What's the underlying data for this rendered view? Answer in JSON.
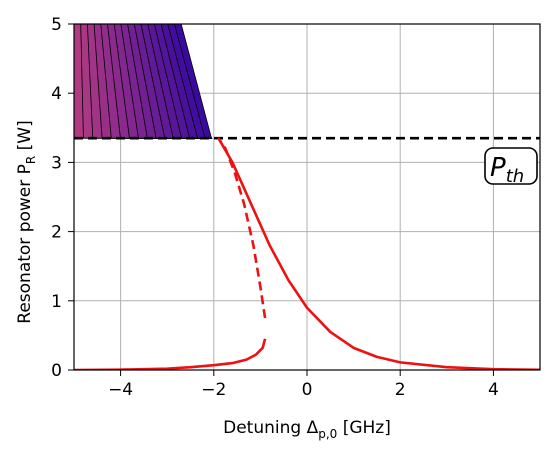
{
  "chart_data": {
    "type": "line",
    "xlabel_main": "Detuning Δ",
    "xlabel_sub": "p,0",
    "xlabel_unit": " [GHz]",
    "ylabel_main": "Resonator power P",
    "ylabel_sub": "R",
    "ylabel_unit": " [W]",
    "xlim": [
      -5,
      5
    ],
    "ylim": [
      0,
      5
    ],
    "xticks": [
      -4,
      -2,
      0,
      2,
      4
    ],
    "xtick_labels": [
      "−4",
      "−2",
      "0",
      "2",
      "4"
    ],
    "yticks": [
      0,
      1,
      2,
      3,
      4,
      5
    ],
    "ytick_labels": [
      "0",
      "1",
      "2",
      "3",
      "4",
      "5"
    ],
    "grid": true,
    "threshold": {
      "value": 3.35,
      "label_main": "P",
      "label_sub": "th",
      "color": "#000000",
      "style": "dashed"
    },
    "series": [
      {
        "style": "solid",
        "color": "#ee1111",
        "points": [
          [
            -5,
            0.0
          ],
          [
            -4,
            0.005
          ],
          [
            -3,
            0.02
          ],
          [
            -2.5,
            0.04
          ],
          [
            -2,
            0.07
          ],
          [
            -1.6,
            0.1
          ],
          [
            -1.3,
            0.15
          ],
          [
            -1.1,
            0.22
          ],
          [
            -0.95,
            0.32
          ],
          [
            -0.9,
            0.45
          ]
        ]
      },
      {
        "style": "dashed",
        "color": "#ee1111",
        "points": [
          [
            -0.9,
            0.75
          ],
          [
            -1.0,
            1.2
          ],
          [
            -1.15,
            1.8
          ],
          [
            -1.35,
            2.4
          ],
          [
            -1.55,
            2.85
          ],
          [
            -1.75,
            3.2
          ],
          [
            -1.9,
            3.35
          ]
        ]
      },
      {
        "style": "solid",
        "color": "#ee1111",
        "points": [
          [
            -1.9,
            3.35
          ],
          [
            -1.6,
            3.0
          ],
          [
            -1.2,
            2.4
          ],
          [
            -0.8,
            1.8
          ],
          [
            -0.4,
            1.3
          ],
          [
            0,
            0.9
          ],
          [
            0.5,
            0.55
          ],
          [
            1,
            0.32
          ],
          [
            1.5,
            0.19
          ],
          [
            2,
            0.11
          ],
          [
            3,
            0.04
          ],
          [
            4,
            0.012
          ],
          [
            5,
            0.003
          ]
        ]
      }
    ],
    "region": {
      "top_y": 5,
      "bottom_y": 3.35,
      "left_x": -5,
      "apex_x": -2.05,
      "color_from": "#b03a82",
      "color_to": "#3a0aa0",
      "n_sectors": 16
    }
  }
}
